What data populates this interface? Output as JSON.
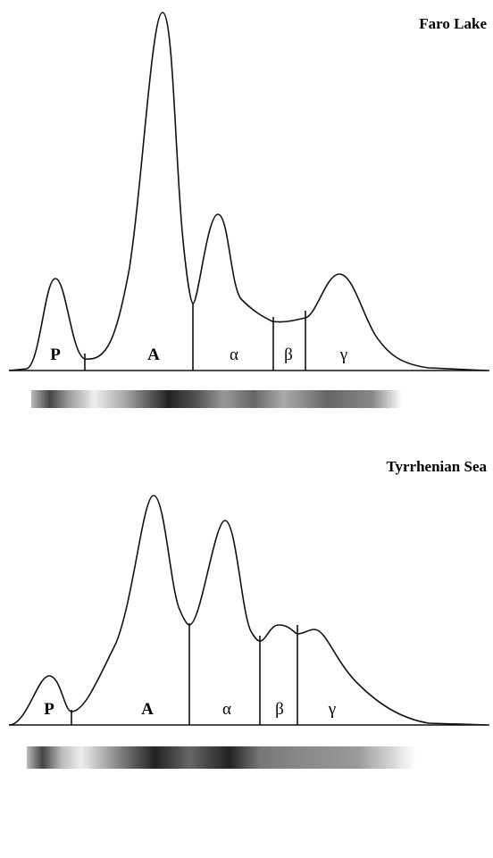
{
  "panels": [
    {
      "title": "Faro Lake",
      "fractions": [
        "P",
        "A",
        "α",
        "β",
        "γ"
      ]
    },
    {
      "title": "Tyrrhenian Sea",
      "fractions": [
        "P",
        "A",
        "α",
        "β",
        "γ"
      ]
    }
  ]
}
